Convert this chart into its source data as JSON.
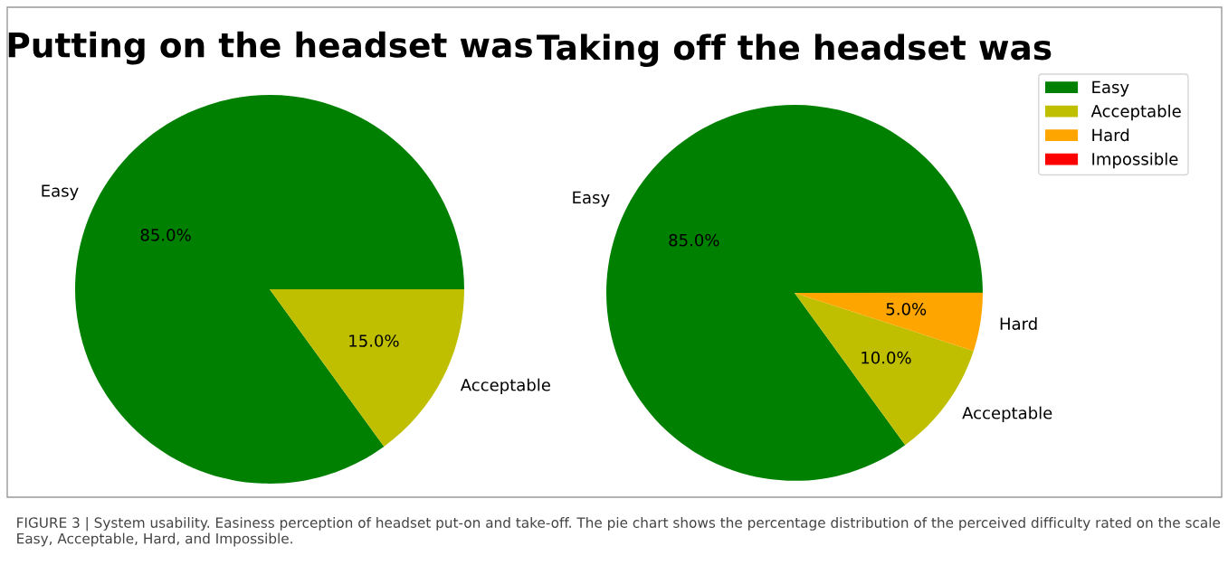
{
  "chart_data": [
    {
      "type": "pie",
      "title": "Putting on the headset was",
      "categories": [
        "Easy",
        "Acceptable"
      ],
      "values": [
        85,
        15
      ],
      "colors": [
        "#008000",
        "#bfbf00"
      ],
      "value_labels": [
        "85.0%",
        "15.0%"
      ],
      "legend": false
    },
    {
      "type": "pie",
      "title": "Taking off the headset was",
      "categories": [
        "Easy",
        "Acceptable",
        "Hard",
        "Impossible"
      ],
      "values": [
        85,
        10,
        5,
        0
      ],
      "colors": [
        "#008000",
        "#bfbf00",
        "#ffa500",
        "#ff0000"
      ],
      "value_labels": [
        "85.0%",
        "10.0%",
        "5.0%",
        null
      ],
      "legend": "top right",
      "annotations": [
        "FIGURE 3 | System usability. Easiness perception of headset put-on and take-off. The pie chart shows the percentage distribution of the perceived difficulty rated on the scale Easy, Acceptable, Hard, and Impossible."
      ]
    }
  ]
}
